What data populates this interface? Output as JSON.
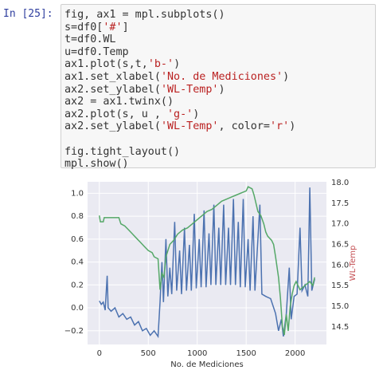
{
  "prompt": "In [25]:",
  "code": [
    [
      [
        "fig, ax1 = mpl.subplots()"
      ],
      [
        "s=df0[",
        "'#'",
        "]"
      ],
      [
        "t=df0.WL"
      ],
      [
        "u=df0.Temp"
      ],
      [
        "ax1.plot(s,t,",
        "'b-'",
        ")"
      ],
      [
        "ax1.set_xlabel(",
        "'No. de Mediciones'",
        ")"
      ],
      [
        "ax2.set_ylabel(",
        "'WL-Temp'",
        ")"
      ],
      [
        "ax2 = ax1.twinx()"
      ],
      [
        "ax2.plot(s, u , ",
        "'g-'",
        ")"
      ],
      [
        "ax2.set_ylabel(",
        "'WL-Temp'",
        ", color=",
        "'r'",
        ")"
      ]
    ],
    [
      [
        "fig.tight_layout()"
      ],
      [
        "mpl.show()"
      ]
    ]
  ],
  "chart_data": {
    "type": "line",
    "xlabel": "No. de Mediciones",
    "y2label": "WL-Temp",
    "y2label_color": "#c44e52",
    "grid": true,
    "xlim": [
      -120,
      2320
    ],
    "xticks": [
      0,
      500,
      1000,
      1500,
      2000
    ],
    "ylim": [
      -0.32,
      1.1
    ],
    "yticks": [
      {
        "value": -0.2,
        "label": "−0.2"
      },
      {
        "value": 0,
        "label": "0.0"
      },
      0.2,
      0.4,
      0.6,
      0.8,
      {
        "value": 1,
        "label": "1.0"
      }
    ],
    "y2lim": [
      14.07,
      18.02
    ],
    "y2ticks": [
      14.5,
      {
        "value": 15,
        "label": "15.0"
      },
      15.5,
      {
        "value": 16,
        "label": "16.0"
      },
      16.5,
      {
        "value": 17,
        "label": "17.0"
      },
      17.5,
      {
        "value": 18,
        "label": "18.0"
      }
    ],
    "series": [
      {
        "color": "#4c72b0",
        "x": [
          0,
          20,
          40,
          60,
          80,
          90,
          120,
          160,
          200,
          240,
          280,
          320,
          360,
          400,
          440,
          480,
          520,
          560,
          600,
          620,
          640,
          655,
          680,
          700,
          720,
          740,
          770,
          790,
          820,
          840,
          870,
          890,
          920,
          940,
          970,
          990,
          1020,
          1040,
          1070,
          1090,
          1120,
          1140,
          1170,
          1190,
          1220,
          1240,
          1270,
          1290,
          1320,
          1340,
          1370,
          1390,
          1420,
          1440,
          1470,
          1490,
          1520,
          1540,
          1570,
          1590,
          1640,
          1660,
          1700,
          1750,
          1800,
          1830,
          1860,
          1880,
          1910,
          1940,
          1960,
          1990,
          2020,
          2050,
          2070,
          2100,
          2130,
          2150,
          2170,
          2200
        ],
        "values": [
          0.06,
          0.03,
          0.05,
          -0.02,
          0.28,
          0.0,
          -0.03,
          0.0,
          -0.08,
          -0.05,
          -0.1,
          -0.08,
          -0.15,
          -0.12,
          -0.2,
          -0.18,
          -0.24,
          -0.2,
          -0.25,
          0.05,
          0.4,
          0.05,
          0.6,
          0.1,
          0.35,
          0.12,
          0.75,
          0.15,
          0.5,
          0.12,
          0.7,
          0.15,
          0.55,
          0.15,
          0.82,
          0.17,
          0.6,
          0.18,
          0.85,
          0.18,
          0.65,
          0.2,
          0.9,
          0.2,
          0.7,
          0.2,
          0.9,
          0.2,
          0.7,
          0.2,
          0.95,
          0.2,
          0.75,
          0.18,
          0.95,
          0.18,
          0.6,
          0.15,
          0.8,
          0.15,
          0.9,
          0.12,
          0.1,
          0.08,
          -0.05,
          -0.2,
          -0.1,
          -0.25,
          -0.05,
          0.35,
          -0.1,
          0.1,
          0.12,
          0.7,
          0.15,
          0.2,
          0.1,
          1.05,
          0.15,
          0.25
        ]
      },
      {
        "color": "#55a868",
        "axis": "y2",
        "x": [
          0,
          10,
          40,
          50,
          200,
          220,
          260,
          300,
          340,
          380,
          420,
          460,
          500,
          540,
          560,
          600,
          620,
          640,
          660,
          680,
          720,
          760,
          800,
          850,
          900,
          950,
          1000,
          1050,
          1100,
          1150,
          1200,
          1250,
          1300,
          1350,
          1400,
          1450,
          1500,
          1520,
          1560,
          1580,
          1600,
          1620,
          1650,
          1680,
          1700,
          1720,
          1760,
          1780,
          1800,
          1830,
          1850,
          1870,
          1890,
          1910,
          1930,
          1950,
          1970,
          1990,
          2010,
          2050,
          2100,
          2150,
          2180,
          2200
        ],
        "values": [
          17.2,
          17.05,
          17.05,
          17.15,
          17.15,
          17.0,
          16.95,
          16.85,
          16.75,
          16.65,
          16.55,
          16.45,
          16.35,
          16.3,
          16.2,
          16.15,
          15.4,
          15.8,
          15.7,
          16.2,
          16.5,
          16.6,
          16.75,
          16.85,
          16.9,
          17.0,
          17.1,
          17.2,
          17.3,
          17.35,
          17.45,
          17.55,
          17.6,
          17.65,
          17.7,
          17.75,
          17.8,
          17.9,
          17.85,
          17.7,
          17.5,
          17.3,
          17.2,
          17.0,
          16.8,
          16.7,
          16.6,
          16.5,
          16.2,
          15.7,
          15.2,
          14.5,
          14.3,
          14.8,
          14.4,
          15.0,
          15.3,
          15.5,
          15.6,
          15.4,
          15.5,
          15.6,
          15.5,
          15.7
        ]
      }
    ]
  }
}
